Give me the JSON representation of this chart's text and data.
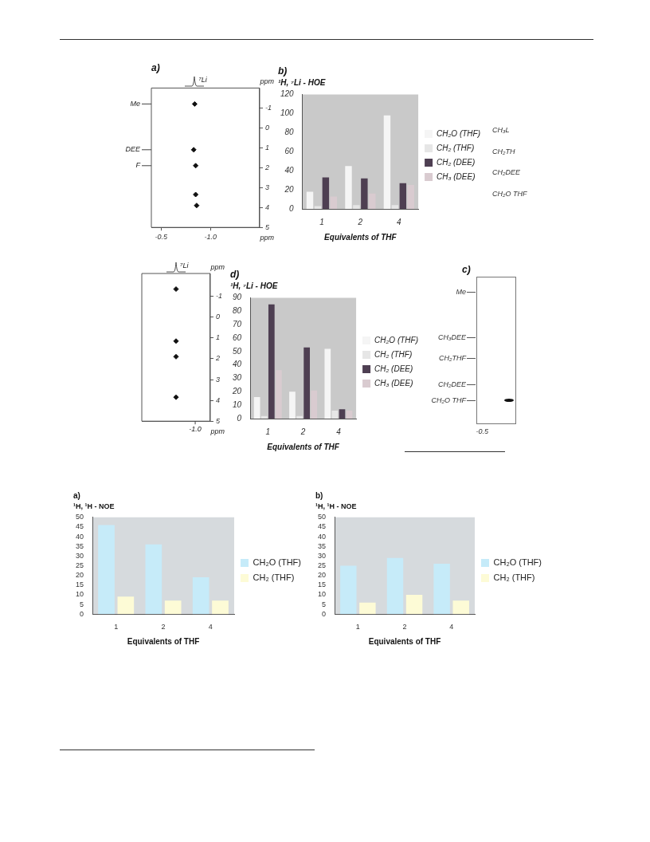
{
  "chart_data": [
    {
      "type": "scatter",
      "title": "a)",
      "x": [
        -0.84,
        -0.83,
        -0.85,
        -0.85,
        -0.86
      ],
      "values": [
        -1.2,
        1.1,
        1.9,
        3.35,
        3.9
      ],
      "color": "#111111",
      "marker": "diamond",
      "xlim": [
        -0.4,
        -1.5
      ],
      "xticks": [
        -0.5,
        {
          "value": -1,
          "label": "-1.0"
        }
      ],
      "ylim": [
        5,
        -2
      ],
      "yticks": [
        -1,
        0,
        1,
        2,
        3,
        4,
        5
      ],
      "xlabel": "ppm",
      "ylabel": "ppm",
      "annotations": [
        "⁷Li",
        "Me",
        "DEE",
        "F"
      ]
    },
    {
      "type": "bar",
      "title": "b)",
      "ylabel": "¹H, ⁷Li - HOE",
      "xlabel": "Equivalents of THF",
      "categories": [
        "1",
        "2",
        "4"
      ],
      "series": [
        {
          "name": "CH₂O (THF)",
          "color": "#f5f5f5",
          "values": [
            18,
            45,
            98
          ]
        },
        {
          "name": "CH₂ (THF)",
          "color": "#e6e6e6",
          "values": [
            3,
            4,
            4
          ]
        },
        {
          "name": "CH₂ (DEE)",
          "color": "#4e3f52",
          "values": [
            33,
            32,
            27
          ]
        },
        {
          "name": "CH₃ (DEE)",
          "color": "#d9cbd0",
          "values": [
            13,
            16,
            25
          ]
        }
      ],
      "ylim": [
        0,
        120
      ],
      "yticks": [
        0,
        20,
        40,
        60,
        80,
        100,
        120
      ],
      "legend": "right"
    },
    {
      "type": "other",
      "annotations": [
        "CH₃L",
        "CH₂TH",
        "CH₂DEE",
        "CH₂O THF"
      ]
    },
    {
      "type": "scatter",
      "categories": [
        null
      ],
      "series": [
        {
          "color": "#111111",
          "values": [
            -1.35
          ]
        },
        {
          "color": "#111111",
          "values": [
            1.15
          ]
        },
        {
          "color": "#111111",
          "values": [
            1.9
          ]
        },
        {
          "color": "#111111",
          "values": [
            3.85
          ]
        }
      ],
      "marker": "diamond",
      "ylim": [
        5,
        -2.1
      ],
      "yticks": [
        -1,
        0,
        1,
        2,
        3,
        4,
        5
      ],
      "xlabel": "ppm",
      "ylabel": "ppm",
      "annotations": [
        "⁷Li",
        "-1.0"
      ]
    },
    {
      "type": "bar",
      "title": "d)",
      "ylabel": "¹H, ⁷Li - HOE",
      "xlabel": "Equivalents of THF",
      "categories": [
        "1",
        "2",
        "4"
      ],
      "series": [
        {
          "name": "CH₂O (THF)",
          "color": "#f5f5f5",
          "values": [
            16,
            20,
            52
          ]
        },
        {
          "name": "CH₂ (THF)",
          "color": "#e6e6e6",
          "values": [
            2,
            2,
            6
          ]
        },
        {
          "name": "CH₂ (DEE)",
          "color": "#4e3f52",
          "values": [
            85,
            53,
            7
          ]
        },
        {
          "name": "CH₃ (DEE)",
          "color": "#d9cbd0",
          "values": [
            36,
            21,
            6
          ]
        }
      ],
      "ylim": [
        0,
        90
      ],
      "yticks": [
        0,
        10,
        20,
        30,
        40,
        50,
        60,
        70,
        80,
        90
      ],
      "legend": "right"
    },
    {
      "type": "other",
      "title": "c)",
      "annotations": [
        "Me",
        "CH₃DEE",
        "CH₂THF",
        "CH₂DEE",
        "CH₂O THF",
        "-0.5"
      ]
    },
    {
      "type": "bar",
      "title": "a)",
      "ylabel": "¹H, ¹H - NOE",
      "xlabel": "Equivalents of THF",
      "categories": [
        "1",
        "2",
        "4"
      ],
      "series": [
        {
          "name": "CH₂O (THF)",
          "color": "#c6ebf9",
          "values": [
            46,
            36,
            19
          ]
        },
        {
          "name": "CH₂ (THF)",
          "color": "#fdfbd6",
          "values": [
            9,
            7,
            7
          ]
        }
      ],
      "ylim": [
        0,
        50
      ],
      "yticks": [
        0,
        5,
        10,
        15,
        20,
        25,
        30,
        35,
        40,
        45,
        50
      ],
      "legend": "right"
    },
    {
      "type": "bar",
      "title": "b)",
      "ylabel": "¹H, ¹H - NOE",
      "xlabel": "Equivalents of THF",
      "categories": [
        "1",
        "2",
        "4"
      ],
      "series": [
        {
          "name": "CH₂O (THF)",
          "color": "#c6ebf9",
          "values": [
            25,
            29,
            26
          ]
        },
        {
          "name": "CH₂ (THF)",
          "color": "#fdfbd6",
          "values": [
            6,
            10,
            7
          ]
        }
      ],
      "ylim": [
        0,
        50
      ],
      "yticks": [
        0,
        5,
        10,
        15,
        20,
        25,
        30,
        35,
        40,
        45,
        50
      ],
      "legend": "right"
    }
  ]
}
